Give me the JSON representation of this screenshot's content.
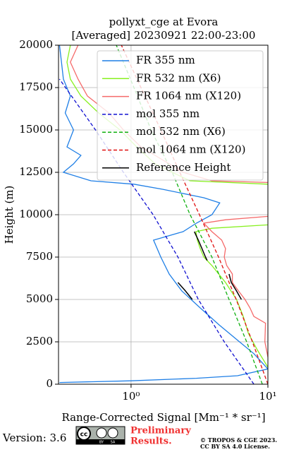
{
  "chart_data": {
    "type": "profile",
    "title": "pollyxt_cge at Evora",
    "subtitle": "[Averaged] 20230921 22:00-23:00",
    "x_label": "Range-Corrected Signal [Mm⁻¹ * sr⁻¹]",
    "y_label": "Height (m)",
    "x_log": true,
    "xlim": [
      0.295,
      10
    ],
    "xticks": [
      {
        "value": 1,
        "label": "10⁰"
      },
      {
        "value": 10,
        "label": "10¹"
      }
    ],
    "ylim": [
      0,
      20000
    ],
    "yticks": [
      0,
      2500,
      5000,
      7500,
      10000,
      12500,
      15000,
      17500,
      20000
    ],
    "grid": true,
    "legend": "upper right",
    "series": [
      {
        "name": "FR 355 nm",
        "color": "#1f7fe6",
        "linestyle": "solid",
        "x": [
          0.3,
          1,
          3,
          6,
          10,
          7.9,
          6.2,
          4.4,
          3.2,
          2.35,
          1.9,
          1.65,
          1.46,
          2.4,
          3.0,
          3.9,
          4.45,
          3.4,
          1.7,
          1.05,
          0.51,
          0.32,
          0.38,
          0.43,
          0.34,
          0.38,
          0.33,
          0.36,
          0.32,
          0.31,
          0.3
        ],
        "y": [
          100,
          200,
          350,
          500,
          900,
          1800,
          2500,
          3500,
          4500,
          5500,
          6500,
          7500,
          8500,
          9000,
          9500,
          10000,
          10700,
          11000,
          11500,
          11800,
          12000,
          12500,
          13000,
          13500,
          14000,
          15000,
          16000,
          17000,
          18000,
          19000,
          20000
        ]
      },
      {
        "name": "FR 532 nm (X6)",
        "color": "#88f020",
        "linestyle": "solid",
        "x": [
          10,
          8.4,
          7.2,
          6.6,
          5.9,
          4.9,
          3.9,
          3.4,
          3.2,
          3.05,
          2.98,
          3.9,
          10,
          12,
          12,
          10,
          2.7,
          2.0,
          1.5,
          1.1,
          0.83,
          0.58,
          0.43,
          0.36,
          0.34,
          0.36
        ],
        "y": [
          1000,
          2000,
          3000,
          4000,
          5000,
          6000,
          7000,
          7500,
          8000,
          8500,
          9000,
          9200,
          9400,
          9700,
          11700,
          11800,
          12000,
          12500,
          13000,
          14000,
          15000,
          16000,
          17000,
          18000,
          19000,
          20000
        ]
      },
      {
        "name": "FR 1064 nm (X120)",
        "color": "#f56a6a",
        "linestyle": "solid",
        "x": [
          10,
          9.5,
          9.6,
          7.9,
          7.4,
          6.8,
          6.1,
          5.5,
          5.5,
          5.0,
          4.8,
          4.9,
          4.6,
          3.9,
          3.4,
          4.9,
          10,
          12,
          12,
          10,
          3.9,
          2.4,
          1.9,
          1.18,
          0.88,
          0.69,
          0.48,
          0.41,
          0.36,
          0.41
        ],
        "y": [
          1600,
          2500,
          3600,
          4000,
          4500,
          5000,
          5500,
          6000,
          6500,
          7000,
          7500,
          8000,
          8500,
          9000,
          9500,
          9700,
          9900,
          10100,
          11700,
          11900,
          12000,
          12500,
          13000,
          14000,
          15000,
          16000,
          17000,
          18000,
          19000,
          20000
        ]
      },
      {
        "name": "mol 355 nm",
        "color": "#1010d0",
        "linestyle": "dashed",
        "x": [
          7.9,
          4.8,
          3.1,
          2.2,
          1.45,
          0.88,
          0.55,
          0.3
        ],
        "y": [
          0,
          2500,
          5000,
          7500,
          10000,
          12500,
          15000,
          18000
        ]
      },
      {
        "name": "mol 532 nm (X6)",
        "color": "#10b010",
        "linestyle": "dashed",
        "x": [
          9.1,
          7.0,
          5.2,
          3.9,
          2.7,
          2.0,
          1.4,
          1.05,
          0.78
        ],
        "y": [
          0,
          2500,
          5000,
          7500,
          10000,
          12500,
          15000,
          17500,
          20000
        ]
      },
      {
        "name": "mol 1064 nm (X120)",
        "color": "#e01010",
        "linestyle": "dashed",
        "x": [
          10,
          7.7,
          5.86,
          4.36,
          3.16,
          2.27,
          1.65,
          1.18,
          0.85
        ],
        "y": [
          0,
          2500,
          5000,
          7500,
          10000,
          12500,
          15000,
          17500,
          20000
        ]
      },
      {
        "name": "Reference Height",
        "color": "#000000",
        "linestyle": "solid",
        "x": [
          2.9,
          3.1,
          3.3,
          3.5,
          3.6,
          null,
          5.2,
          5.4,
          5.9,
          6.4,
          null,
          2.2,
          2.5,
          2.8
        ],
        "y": [
          9000,
          8500,
          8000,
          7500,
          7300,
          null,
          6500,
          6000,
          5500,
          5000,
          null,
          6000,
          5500,
          5000
        ]
      }
    ]
  },
  "footer": {
    "version": "Version: 3.6",
    "badge": [
      "cc",
      "BY",
      "SA"
    ],
    "preliminary": [
      "Preliminary",
      "Results."
    ],
    "copyright": [
      "© TROPOS & CGE 2023.",
      "CC BY SA 4.0 License."
    ]
  }
}
